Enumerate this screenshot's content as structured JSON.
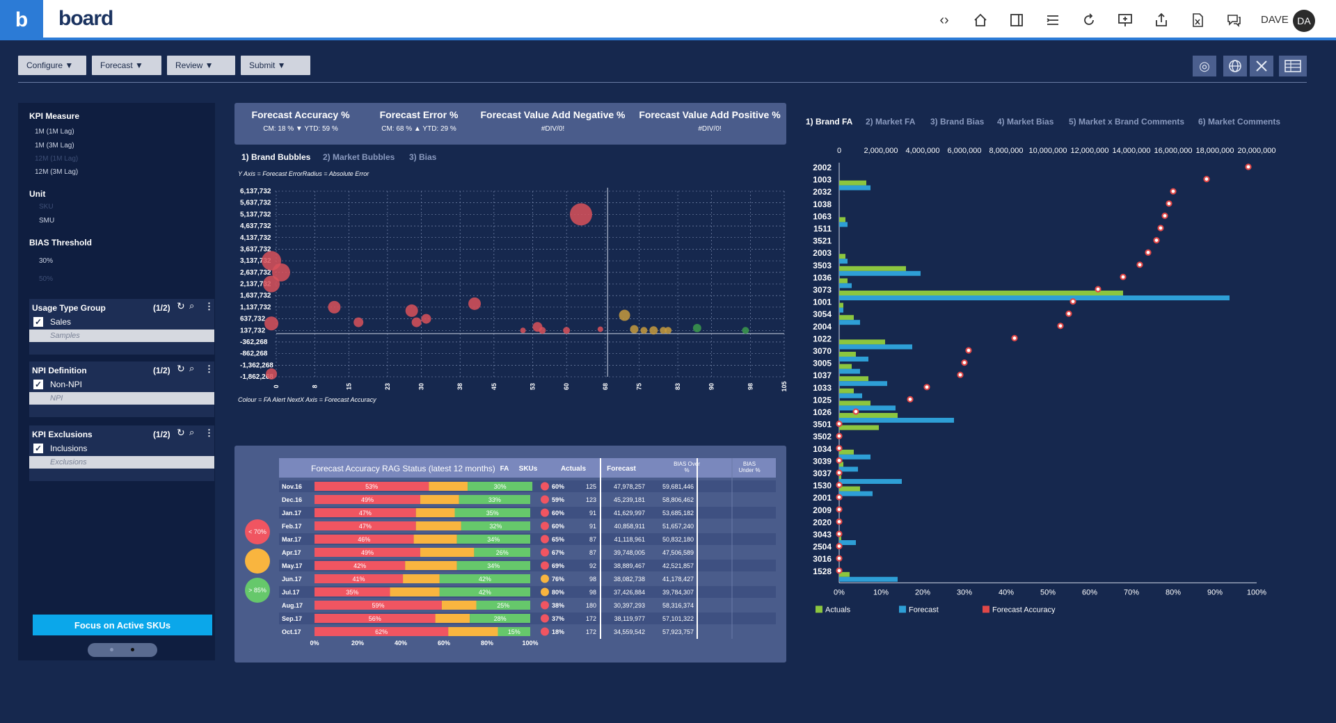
{
  "header": {
    "logo_letter": "b",
    "brand": "board",
    "icons": [
      "code-icon",
      "home-icon",
      "panel-icon",
      "list-icon",
      "refresh-icon",
      "presentation-icon",
      "share-icon",
      "excel-icon",
      "comments-icon"
    ],
    "user": "DAVE",
    "avatar": "DA"
  },
  "menu": {
    "configure": "Configure ▼",
    "forecast": "Forecast ▼",
    "review": "Review ▼",
    "submit": "Submit ▼"
  },
  "left": {
    "kpi_measure": "KPI Measure",
    "kpi_items": [
      "1M (1M Lag)",
      "1M (3M Lag)",
      "12M (1M Lag)",
      "12M (3M Lag)"
    ],
    "unit": "Unit",
    "unit_items": [
      "SKU",
      "SMU"
    ],
    "bias": "BIAS Threshold",
    "bias_items": [
      "30%",
      "50%"
    ],
    "usage": {
      "title": "Usage Type Group",
      "count": "(1/2)",
      "checked": "Sales",
      "ghost": "Samples"
    },
    "npi": {
      "title": "NPI Definition",
      "count": "(1/2)",
      "checked": "Non-NPI",
      "ghost": "NPI"
    },
    "excl": {
      "title": "KPI Exclusions",
      "count": "(1/2)",
      "checked": "Inclusions",
      "ghost": "Exclusions"
    },
    "focus": "Focus on Active SKUs"
  },
  "kpis": {
    "fa_label": "Forecast Accuracy %",
    "fa_val": "CM: 18 % ▼ YTD: 59 %",
    "fe_label": "Forecast Error %",
    "fe_val": "CM: 68 % ▲ YTD: 29 %",
    "fvan_label": "Forecast Value Add Negative %",
    "fvan_val": "#DIV/0!",
    "fvap_label": "Forecast Value Add Positive %",
    "fvap_val": "#DIV/0!"
  },
  "scatter_tabs": [
    "1) Brand Bubbles",
    "2) Market Bubbles",
    "3) Bias"
  ],
  "right_tabs": [
    "1) Brand FA",
    "2) Market FA",
    "3) Brand Bias",
    "4) Market Bias",
    "5) Market x Brand Comments",
    "6) Market Comments"
  ],
  "scatter": {
    "top_note": "Y Axis = Forecast ErrorRadius = Absolute Error",
    "bottom_note": "Colour = FA Alert NextX Axis = Forecast Accuracy",
    "yticks": [
      "6,137,732",
      "5,637,732",
      "5,137,732",
      "4,637,732",
      "4,137,732",
      "3,637,732",
      "3,137,732",
      "2,637,732",
      "2,137,732",
      "1,637,732",
      "1,137,732",
      "637,732",
      "137,732",
      "-362,268",
      "-862,268",
      "-1,362,268",
      "-1,862,268"
    ],
    "xticks": [
      "0",
      "8",
      "15",
      "23",
      "30",
      "38",
      "45",
      "53",
      "60",
      "68",
      "75",
      "83",
      "90",
      "98",
      "105"
    ],
    "colors": {
      "red": "#d9515a",
      "amber": "#c69a3e",
      "green": "#3b9a4c"
    },
    "points": [
      {
        "x": 63,
        "y": 5137732,
        "r": 16,
        "c": "red"
      },
      {
        "x": 1,
        "y": 2637732,
        "r": 13,
        "c": "red"
      },
      {
        "x": -1,
        "y": 3137732,
        "r": 14,
        "c": "red"
      },
      {
        "x": -1,
        "y": 2137732,
        "r": 12,
        "c": "red"
      },
      {
        "x": -1,
        "y": 437732,
        "r": 10,
        "c": "red"
      },
      {
        "x": -1,
        "y": -1737732,
        "r": 8,
        "c": "red"
      },
      {
        "x": 12,
        "y": 1137732,
        "r": 9,
        "c": "red"
      },
      {
        "x": 17,
        "y": 487732,
        "r": 7,
        "c": "red"
      },
      {
        "x": 28,
        "y": 987732,
        "r": 9,
        "c": "red"
      },
      {
        "x": 29,
        "y": 487732,
        "r": 7,
        "c": "red"
      },
      {
        "x": 31,
        "y": 637732,
        "r": 7,
        "c": "red"
      },
      {
        "x": 41,
        "y": 1287732,
        "r": 9,
        "c": "red"
      },
      {
        "x": 51,
        "y": 137732,
        "r": 4,
        "c": "red"
      },
      {
        "x": 54,
        "y": 287732,
        "r": 7,
        "c": "red"
      },
      {
        "x": 55,
        "y": 137732,
        "r": 5,
        "c": "red"
      },
      {
        "x": 60,
        "y": 137732,
        "r": 5,
        "c": "red"
      },
      {
        "x": 67,
        "y": 187732,
        "r": 4,
        "c": "red"
      },
      {
        "x": 72,
        "y": 787732,
        "r": 8,
        "c": "amber"
      },
      {
        "x": 74,
        "y": 187732,
        "r": 6,
        "c": "amber"
      },
      {
        "x": 76,
        "y": 137732,
        "r": 5,
        "c": "amber"
      },
      {
        "x": 78,
        "y": 137732,
        "r": 6,
        "c": "amber"
      },
      {
        "x": 80,
        "y": 137732,
        "r": 5,
        "c": "amber"
      },
      {
        "x": 81,
        "y": 137732,
        "r": 5,
        "c": "amber"
      },
      {
        "x": 87,
        "y": 237732,
        "r": 6,
        "c": "green"
      },
      {
        "x": 97,
        "y": 137732,
        "r": 5,
        "c": "green"
      }
    ]
  },
  "rag": {
    "title": "Forecast Accuracy RAG Status (latest 12 months)",
    "cols": [
      "FA",
      "SKUs",
      "Actuals",
      "Forecast",
      "BIAS Over %",
      "BIAS Under %"
    ],
    "legend": [
      "< 70%",
      "",
      "> 85%"
    ],
    "xticks": [
      "0%",
      "20%",
      "40%",
      "60%",
      "80%",
      "100%"
    ],
    "rows": [
      {
        "m": "Nov.16",
        "r": 53,
        "a": 18,
        "g": 30,
        "rl": "53%",
        "gl": "30%",
        "fa": "60%",
        "dot": "red",
        "skus": "125",
        "act": "47,978,257",
        "fc": "59,681,446"
      },
      {
        "m": "Dec.16",
        "r": 49,
        "a": 18,
        "g": 33,
        "rl": "49%",
        "gl": "33%",
        "fa": "59%",
        "dot": "red",
        "skus": "123",
        "act": "45,239,181",
        "fc": "58,806,462"
      },
      {
        "m": "Jan.17",
        "r": 47,
        "a": 18,
        "g": 35,
        "rl": "47%",
        "gl": "35%",
        "fa": "60%",
        "dot": "red",
        "skus": "91",
        "act": "41,629,997",
        "fc": "53,685,182"
      },
      {
        "m": "Feb.17",
        "r": 47,
        "a": 21,
        "g": 32,
        "rl": "47%",
        "gl": "32%",
        "fa": "60%",
        "dot": "red",
        "skus": "91",
        "act": "40,858,911",
        "fc": "51,657,240"
      },
      {
        "m": "Mar.17",
        "r": 46,
        "a": 20,
        "g": 34,
        "rl": "46%",
        "gl": "34%",
        "fa": "65%",
        "dot": "red",
        "skus": "87",
        "act": "41,118,961",
        "fc": "50,832,180"
      },
      {
        "m": "Apr.17",
        "r": 49,
        "a": 25,
        "g": 26,
        "rl": "49%",
        "gl": "26%",
        "fa": "67%",
        "dot": "red",
        "skus": "87",
        "act": "39,748,005",
        "fc": "47,506,589"
      },
      {
        "m": "May.17",
        "r": 42,
        "a": 24,
        "g": 34,
        "rl": "42%",
        "gl": "34%",
        "fa": "69%",
        "dot": "red",
        "skus": "92",
        "act": "38,889,467",
        "fc": "42,521,857"
      },
      {
        "m": "Jun.17",
        "r": 41,
        "a": 17,
        "g": 42,
        "rl": "41%",
        "gl": "42%",
        "fa": "76%",
        "dot": "amber",
        "skus": "98",
        "act": "38,082,738",
        "fc": "41,178,427"
      },
      {
        "m": "Jul.17",
        "r": 35,
        "a": 23,
        "g": 42,
        "rl": "35%",
        "gl": "42%",
        "fa": "80%",
        "dot": "amber",
        "skus": "98",
        "act": "37,426,884",
        "fc": "39,784,307"
      },
      {
        "m": "Aug.17",
        "r": 59,
        "a": 16,
        "g": 25,
        "rl": "59%",
        "gl": "25%",
        "fa": "38%",
        "dot": "red",
        "skus": "180",
        "act": "30,397,293",
        "fc": "58,316,374"
      },
      {
        "m": "Sep.17",
        "r": 56,
        "a": 16,
        "g": 28,
        "rl": "56%",
        "gl": "28%",
        "fa": "37%",
        "dot": "red",
        "skus": "172",
        "act": "38,119,977",
        "fc": "57,101,322"
      },
      {
        "m": "Oct.17",
        "r": 62,
        "a": 23,
        "g": 15,
        "rl": "62%",
        "gl": "15%",
        "fa": "18%",
        "dot": "red",
        "skus": "172",
        "act": "34,559,542",
        "fc": "57,923,757"
      }
    ]
  },
  "brand": {
    "xticks_top": [
      "0",
      "2,000,000",
      "4,000,000",
      "6,000,000",
      "8,000,000",
      "10,000,000",
      "12,000,000",
      "14,000,000",
      "16,000,000",
      "18,000,000",
      "20,000,000"
    ],
    "xticks_bottom": [
      "0%",
      "10%",
      "20%",
      "30%",
      "40%",
      "50%",
      "60%",
      "70%",
      "80%",
      "90%",
      "100%"
    ],
    "legend": [
      "Actuals",
      "Forecast",
      "Forecast Accuracy"
    ],
    "colors": {
      "actuals": "#8cc63f",
      "forecast": "#2e9fd6",
      "accuracy": "#e04848"
    },
    "rows": [
      {
        "b": "2002",
        "a": 0,
        "f": 0,
        "p": 98
      },
      {
        "b": "1003",
        "a": 1300000,
        "f": 1500000,
        "p": 88
      },
      {
        "b": "2032",
        "a": 0,
        "f": 0,
        "p": 80
      },
      {
        "b": "1038",
        "a": 0,
        "f": 0,
        "p": 79
      },
      {
        "b": "1063",
        "a": 300000,
        "f": 400000,
        "p": 78
      },
      {
        "b": "1511",
        "a": 0,
        "f": 0,
        "p": 77
      },
      {
        "b": "3521",
        "a": 0,
        "f": 0,
        "p": 76
      },
      {
        "b": "2003",
        "a": 300000,
        "f": 400000,
        "p": 74
      },
      {
        "b": "3503",
        "a": 3200000,
        "f": 3900000,
        "p": 72
      },
      {
        "b": "1036",
        "a": 400000,
        "f": 600000,
        "p": 68
      },
      {
        "b": "3073",
        "a": 13600000,
        "f": 18700000,
        "p": 62
      },
      {
        "b": "1001",
        "a": 200000,
        "f": 200000,
        "p": 56
      },
      {
        "b": "3054",
        "a": 700000,
        "f": 1000000,
        "p": 55
      },
      {
        "b": "2004",
        "a": 0,
        "f": 0,
        "p": 53
      },
      {
        "b": "1022",
        "a": 2200000,
        "f": 3500000,
        "p": 42
      },
      {
        "b": "3070",
        "a": 800000,
        "f": 1400000,
        "p": 31
      },
      {
        "b": "3005",
        "a": 600000,
        "f": 1000000,
        "p": 30
      },
      {
        "b": "1037",
        "a": 1400000,
        "f": 2300000,
        "p": 29
      },
      {
        "b": "1033",
        "a": 700000,
        "f": 1100000,
        "p": 21
      },
      {
        "b": "1025",
        "a": 1500000,
        "f": 2700000,
        "p": 17
      },
      {
        "b": "1026",
        "a": 2800000,
        "f": 5500000,
        "p": 4
      },
      {
        "b": "3501",
        "a": 1900000,
        "f": 0,
        "p": 0
      },
      {
        "b": "3502",
        "a": 0,
        "f": 0,
        "p": 0
      },
      {
        "b": "1034",
        "a": 700000,
        "f": 1500000,
        "p": 0
      },
      {
        "b": "3039",
        "a": 200000,
        "f": 900000,
        "p": 0
      },
      {
        "b": "3037",
        "a": 100000,
        "f": 3000000,
        "p": 0
      },
      {
        "b": "1530",
        "a": 1000000,
        "f": 1600000,
        "p": 0
      },
      {
        "b": "2001",
        "a": 0,
        "f": 0,
        "p": 0
      },
      {
        "b": "2009",
        "a": 0,
        "f": 0,
        "p": 0
      },
      {
        "b": "2020",
        "a": 0,
        "f": 0,
        "p": 0
      },
      {
        "b": "3043",
        "a": 100000,
        "f": 800000,
        "p": 0
      },
      {
        "b": "2504",
        "a": 0,
        "f": 0,
        "p": 0
      },
      {
        "b": "3016",
        "a": 0,
        "f": 0,
        "p": 0
      },
      {
        "b": "1528",
        "a": 500000,
        "f": 2800000,
        "p": 0
      }
    ]
  },
  "chart_data": [
    {
      "type": "scatter",
      "title": "",
      "xlabel": "Forecast Accuracy",
      "ylabel": "Forecast Error",
      "xlim": [
        0,
        105
      ],
      "ylim": [
        -1862268,
        6137732
      ]
    },
    {
      "type": "bar",
      "title": "Forecast Accuracy RAG Status (latest 12 months)",
      "categories": [
        "Nov.16",
        "Dec.16",
        "Jan.17",
        "Feb.17",
        "Mar.17",
        "Apr.17",
        "May.17",
        "Jun.17",
        "Jul.17",
        "Aug.17",
        "Sep.17",
        "Oct.17"
      ],
      "series": [
        {
          "name": "< 70%",
          "values": [
            53,
            49,
            47,
            47,
            46,
            49,
            42,
            41,
            35,
            59,
            56,
            62
          ]
        },
        {
          "name": "> 85%",
          "values": [
            30,
            33,
            35,
            32,
            34,
            26,
            34,
            42,
            42,
            25,
            28,
            15
          ]
        }
      ]
    },
    {
      "type": "bar",
      "title": "",
      "legend": [
        "Actuals",
        "Forecast",
        "Forecast Accuracy"
      ],
      "xlim": [
        0,
        20000000
      ]
    }
  ]
}
